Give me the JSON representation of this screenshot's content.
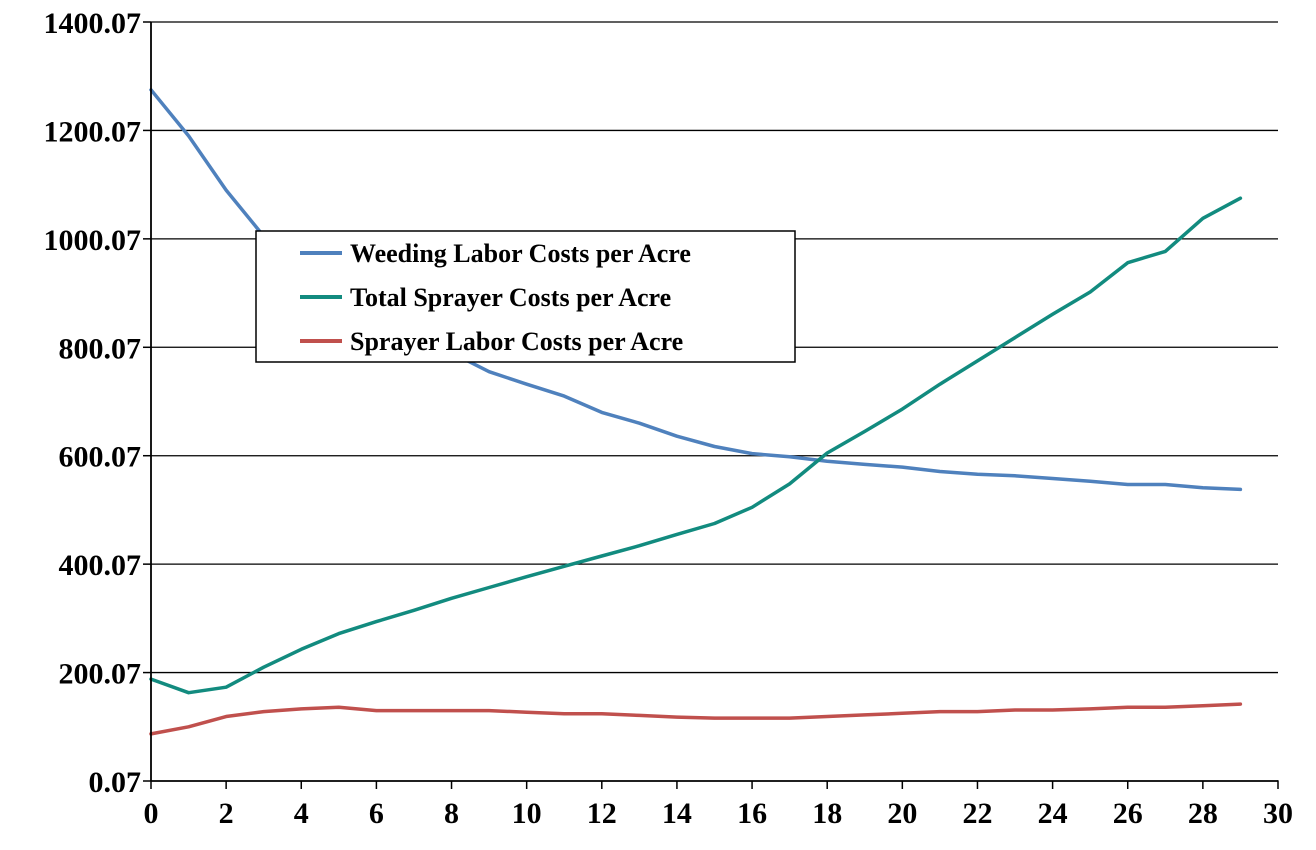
{
  "chart_data": {
    "type": "line",
    "title": "",
    "xlabel": "",
    "ylabel": "",
    "xlim": [
      0,
      30
    ],
    "ylim": [
      0.07,
      1400.07
    ],
    "x_ticks": [
      "0",
      "2",
      "4",
      "6",
      "8",
      "10",
      "12",
      "14",
      "16",
      "18",
      "20",
      "22",
      "24",
      "26",
      "28",
      "30"
    ],
    "y_ticks": [
      "0.07",
      "200.07",
      "400.07",
      "600.07",
      "800.07",
      "1000.07",
      "1200.07",
      "1400.07"
    ],
    "grid": "horizontal",
    "legend_position": "upper-left inside plot",
    "x": [
      0,
      1,
      2,
      3,
      4,
      5,
      6,
      7,
      8,
      9,
      10,
      11,
      12,
      13,
      14,
      15,
      16,
      17,
      18,
      19,
      20,
      21,
      22,
      23,
      24,
      25,
      26,
      27,
      28,
      29
    ],
    "series": [
      {
        "name": "Weeding Labor Costs per Acre",
        "color": "#4F81BD",
        "values": [
          1275,
          1190,
          1090,
          1005,
          950,
          915,
          880,
          845,
          790,
          755,
          732,
          710,
          680,
          660,
          636,
          617,
          604,
          598,
          590,
          584,
          579,
          571,
          566,
          563,
          558,
          553,
          547,
          547,
          541,
          538
        ]
      },
      {
        "name": "Total Sprayer Costs per Acre",
        "color": "#128B7F",
        "values": [
          188,
          163,
          173,
          210,
          243,
          272,
          294,
          315,
          337,
          357,
          377,
          396,
          415,
          434,
          455,
          475,
          505,
          548,
          605,
          645,
          686,
          732,
          775,
          818,
          861,
          902,
          956,
          977,
          1038,
          1075
        ]
      },
      {
        "name": "Sprayer Labor Costs per Acre",
        "color": "#C0504D",
        "values": [
          87,
          100,
          119,
          128,
          133,
          136,
          130,
          130,
          130,
          130,
          127,
          124,
          124,
          121,
          118,
          116,
          116,
          116,
          119,
          122,
          125,
          128,
          128,
          131,
          131,
          133,
          136,
          136,
          139,
          142
        ]
      }
    ]
  }
}
